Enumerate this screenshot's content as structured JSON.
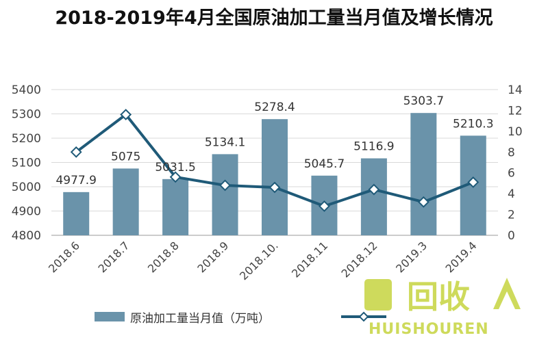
{
  "chart_data": {
    "type": "bar",
    "title": "2018-2019年4月全国原油加工量当月值及增长情况",
    "categories": [
      "2018.6",
      "2018.7",
      "2018.8",
      "2018.9",
      "2018.10.",
      "2018.11",
      "2018.12",
      "2019.3",
      "2019.4"
    ],
    "series": [
      {
        "name": "原油加工量当月值（万吨）",
        "type": "bar",
        "axis": "left",
        "values": [
          4977.9,
          5075,
          5031.5,
          5134.1,
          5278.4,
          5045.7,
          5116.9,
          5303.7,
          5210.3
        ],
        "labels": [
          "4977.9",
          "5075",
          "5031.5",
          "5134.1",
          "5278.4",
          "5045.7",
          "5116.9",
          "5303.7",
          "5210.3"
        ],
        "color": "#6a93aa"
      },
      {
        "name": "",
        "type": "line",
        "axis": "right",
        "values": [
          8.0,
          11.6,
          5.6,
          4.8,
          4.6,
          2.8,
          4.4,
          3.2,
          5.1
        ],
        "color": "#1f5a78"
      }
    ],
    "y_left": {
      "min": 4800,
      "max": 5400,
      "step": 100,
      "ticks": [
        "4800",
        "4900",
        "5000",
        "5100",
        "5200",
        "5300",
        "5400"
      ]
    },
    "y_right": {
      "min": 0,
      "max": 14,
      "step": 2,
      "ticks": [
        "0",
        "2",
        "4",
        "6",
        "8",
        "10",
        "12",
        "14"
      ]
    },
    "grid": true,
    "legend": "bottom"
  },
  "watermark": {
    "text": "回收",
    "subtext": "HUISHOUREN"
  }
}
